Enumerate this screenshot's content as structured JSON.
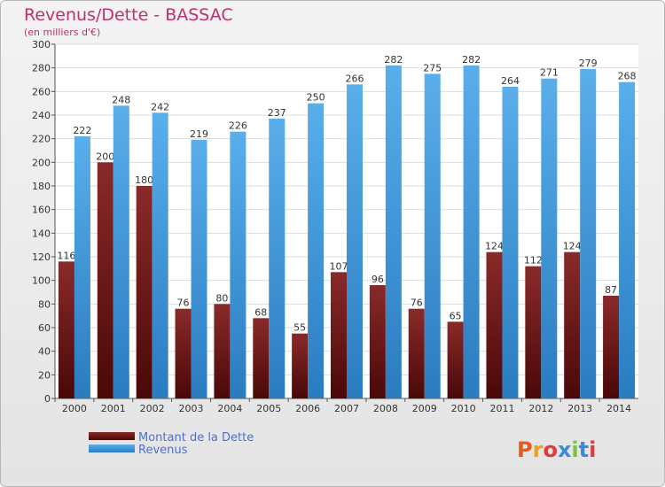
{
  "chart_data": {
    "type": "bar",
    "title": "Revenus/Dette - BASSAC",
    "subtitle": "(en milliers d'€)",
    "categories": [
      "2000",
      "2001",
      "2002",
      "2003",
      "2004",
      "2005",
      "2006",
      "2007",
      "2008",
      "2009",
      "2010",
      "2011",
      "2012",
      "2013",
      "2014"
    ],
    "series": [
      {
        "name": "Montant de la Dette",
        "color": "#7a1e1e",
        "values": [
          116,
          200,
          180,
          76,
          80,
          68,
          55,
          107,
          96,
          76,
          65,
          124,
          112,
          124,
          87
        ]
      },
      {
        "name": "Revenus",
        "color": "#3b97dc",
        "values": [
          222,
          248,
          242,
          219,
          226,
          237,
          250,
          266,
          282,
          275,
          282,
          264,
          271,
          279,
          268
        ]
      }
    ],
    "ylim": [
      0,
      300
    ],
    "yticks": [
      0,
      20,
      40,
      60,
      80,
      100,
      120,
      140,
      160,
      180,
      200,
      220,
      240,
      260,
      280,
      300
    ],
    "grid": true,
    "legend_position": "bottom-left"
  },
  "logo": {
    "text": "Proxiti",
    "letters": [
      {
        "ch": "P",
        "color": "#e85a1a"
      },
      {
        "ch": "r",
        "color": "#f0a020"
      },
      {
        "ch": "o",
        "color": "#e03a3a"
      },
      {
        "ch": "x",
        "color": "#3a8ad8"
      },
      {
        "ch": "i",
        "color": "#7cc242"
      },
      {
        "ch": "t",
        "color": "#3a8ad8"
      },
      {
        "ch": "i",
        "color": "#e03a3a"
      }
    ]
  }
}
